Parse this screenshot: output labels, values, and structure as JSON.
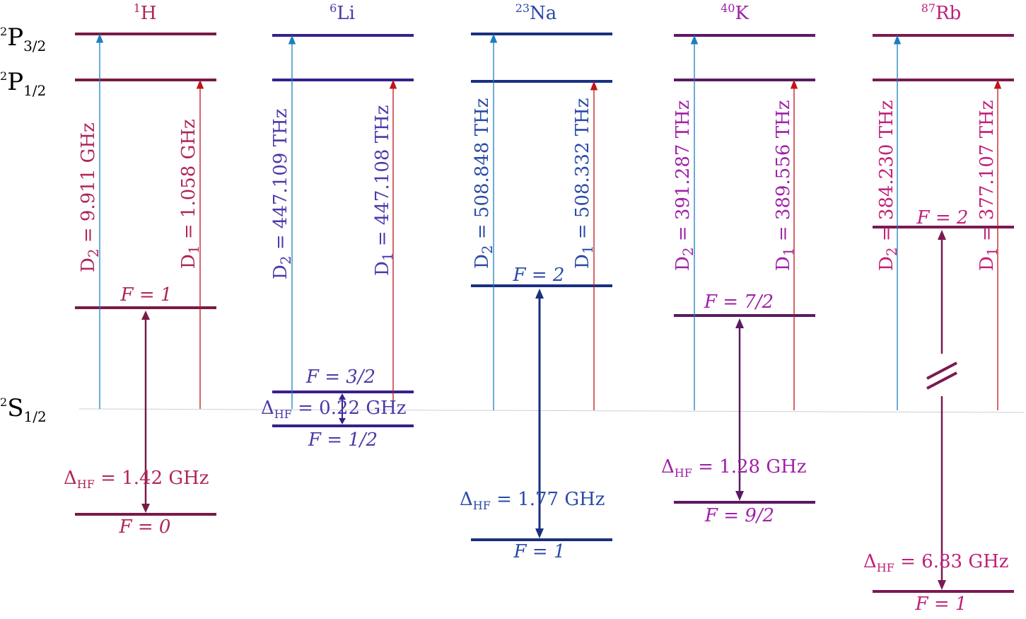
{
  "state_labels": {
    "p32": {
      "base": "P",
      "pre": "2",
      "sub": "3/2"
    },
    "p12": {
      "base": "P",
      "pre": "2",
      "sub": "1/2"
    },
    "s12": {
      "base": "S",
      "pre": "2",
      "sub": "1/2"
    }
  },
  "colors": {
    "d2_arrow": "#1a7fc1",
    "d1_arrow": "#c0151b",
    "baseline": "#c8d0dc"
  },
  "atoms": [
    {
      "id": "h",
      "mass": "1",
      "symbol": "H",
      "color": "#7a1a45",
      "text_color": "#b0245a",
      "d2_label": "D",
      "d2_sub": "2",
      "d2_value": " = 9.911 GHz",
      "d1_label": "D",
      "d1_sub": "1",
      "d1_value": " = 1.058 GHz",
      "upper_f": "F = 1",
      "lower_f": "F = 0",
      "hf_label": "Δ",
      "hf_sub": "HF",
      "hf_value": " = 1.42 GHz"
    },
    {
      "id": "li",
      "mass": "6",
      "symbol": "Li",
      "color": "#38208a",
      "text_color": "#4a3aa8",
      "d2_label": "D",
      "d2_sub": "2",
      "d2_value": " = 447.109 THz",
      "d1_label": "D",
      "d1_sub": "1",
      "d1_value": " = 447.108 THz",
      "upper_f": "F = 3/2",
      "lower_f": "F = 1/2",
      "hf_label": "Δ",
      "hf_sub": "HF",
      "hf_value": " = 0.22 GHz"
    },
    {
      "id": "na",
      "mass": "23",
      "symbol": "Na",
      "color": "#1a2f80",
      "text_color": "#2a4aa8",
      "d2_label": "D",
      "d2_sub": "2",
      "d2_value": " = 508.848 THz",
      "d1_label": "D",
      "d1_sub": "1",
      "d1_value": " = 508.332 THz",
      "upper_f": "F = 2",
      "lower_f": "F = 1",
      "hf_label": "Δ",
      "hf_sub": "HF",
      "hf_value": " = 1.77 GHz"
    },
    {
      "id": "k",
      "mass": "40",
      "symbol": "K",
      "color": "#5a1a62",
      "text_color": "#a020a8",
      "d2_label": "D",
      "d2_sub": "2",
      "d2_value": " = 391.287 THz",
      "d1_label": "D",
      "d1_sub": "1",
      "d1_value": " = 389.556 THz",
      "upper_f": "F = 7/2",
      "lower_f": "F = 9/2",
      "hf_label": "Δ",
      "hf_sub": "HF",
      "hf_value": " = 1.28 GHz"
    },
    {
      "id": "rb",
      "mass": "87",
      "symbol": "Rb",
      "color": "#7a1a52",
      "text_color": "#c0207a",
      "d2_label": "D",
      "d2_sub": "2",
      "d2_value": " = 384.230 THz",
      "d1_label": "D",
      "d1_sub": "1",
      "d1_value": " = 377.107 THz",
      "upper_f": "F = 2",
      "lower_f": "F = 1",
      "hf_label": "Δ",
      "hf_sub": "HF",
      "hf_value": " = 6.83 GHz"
    }
  ]
}
